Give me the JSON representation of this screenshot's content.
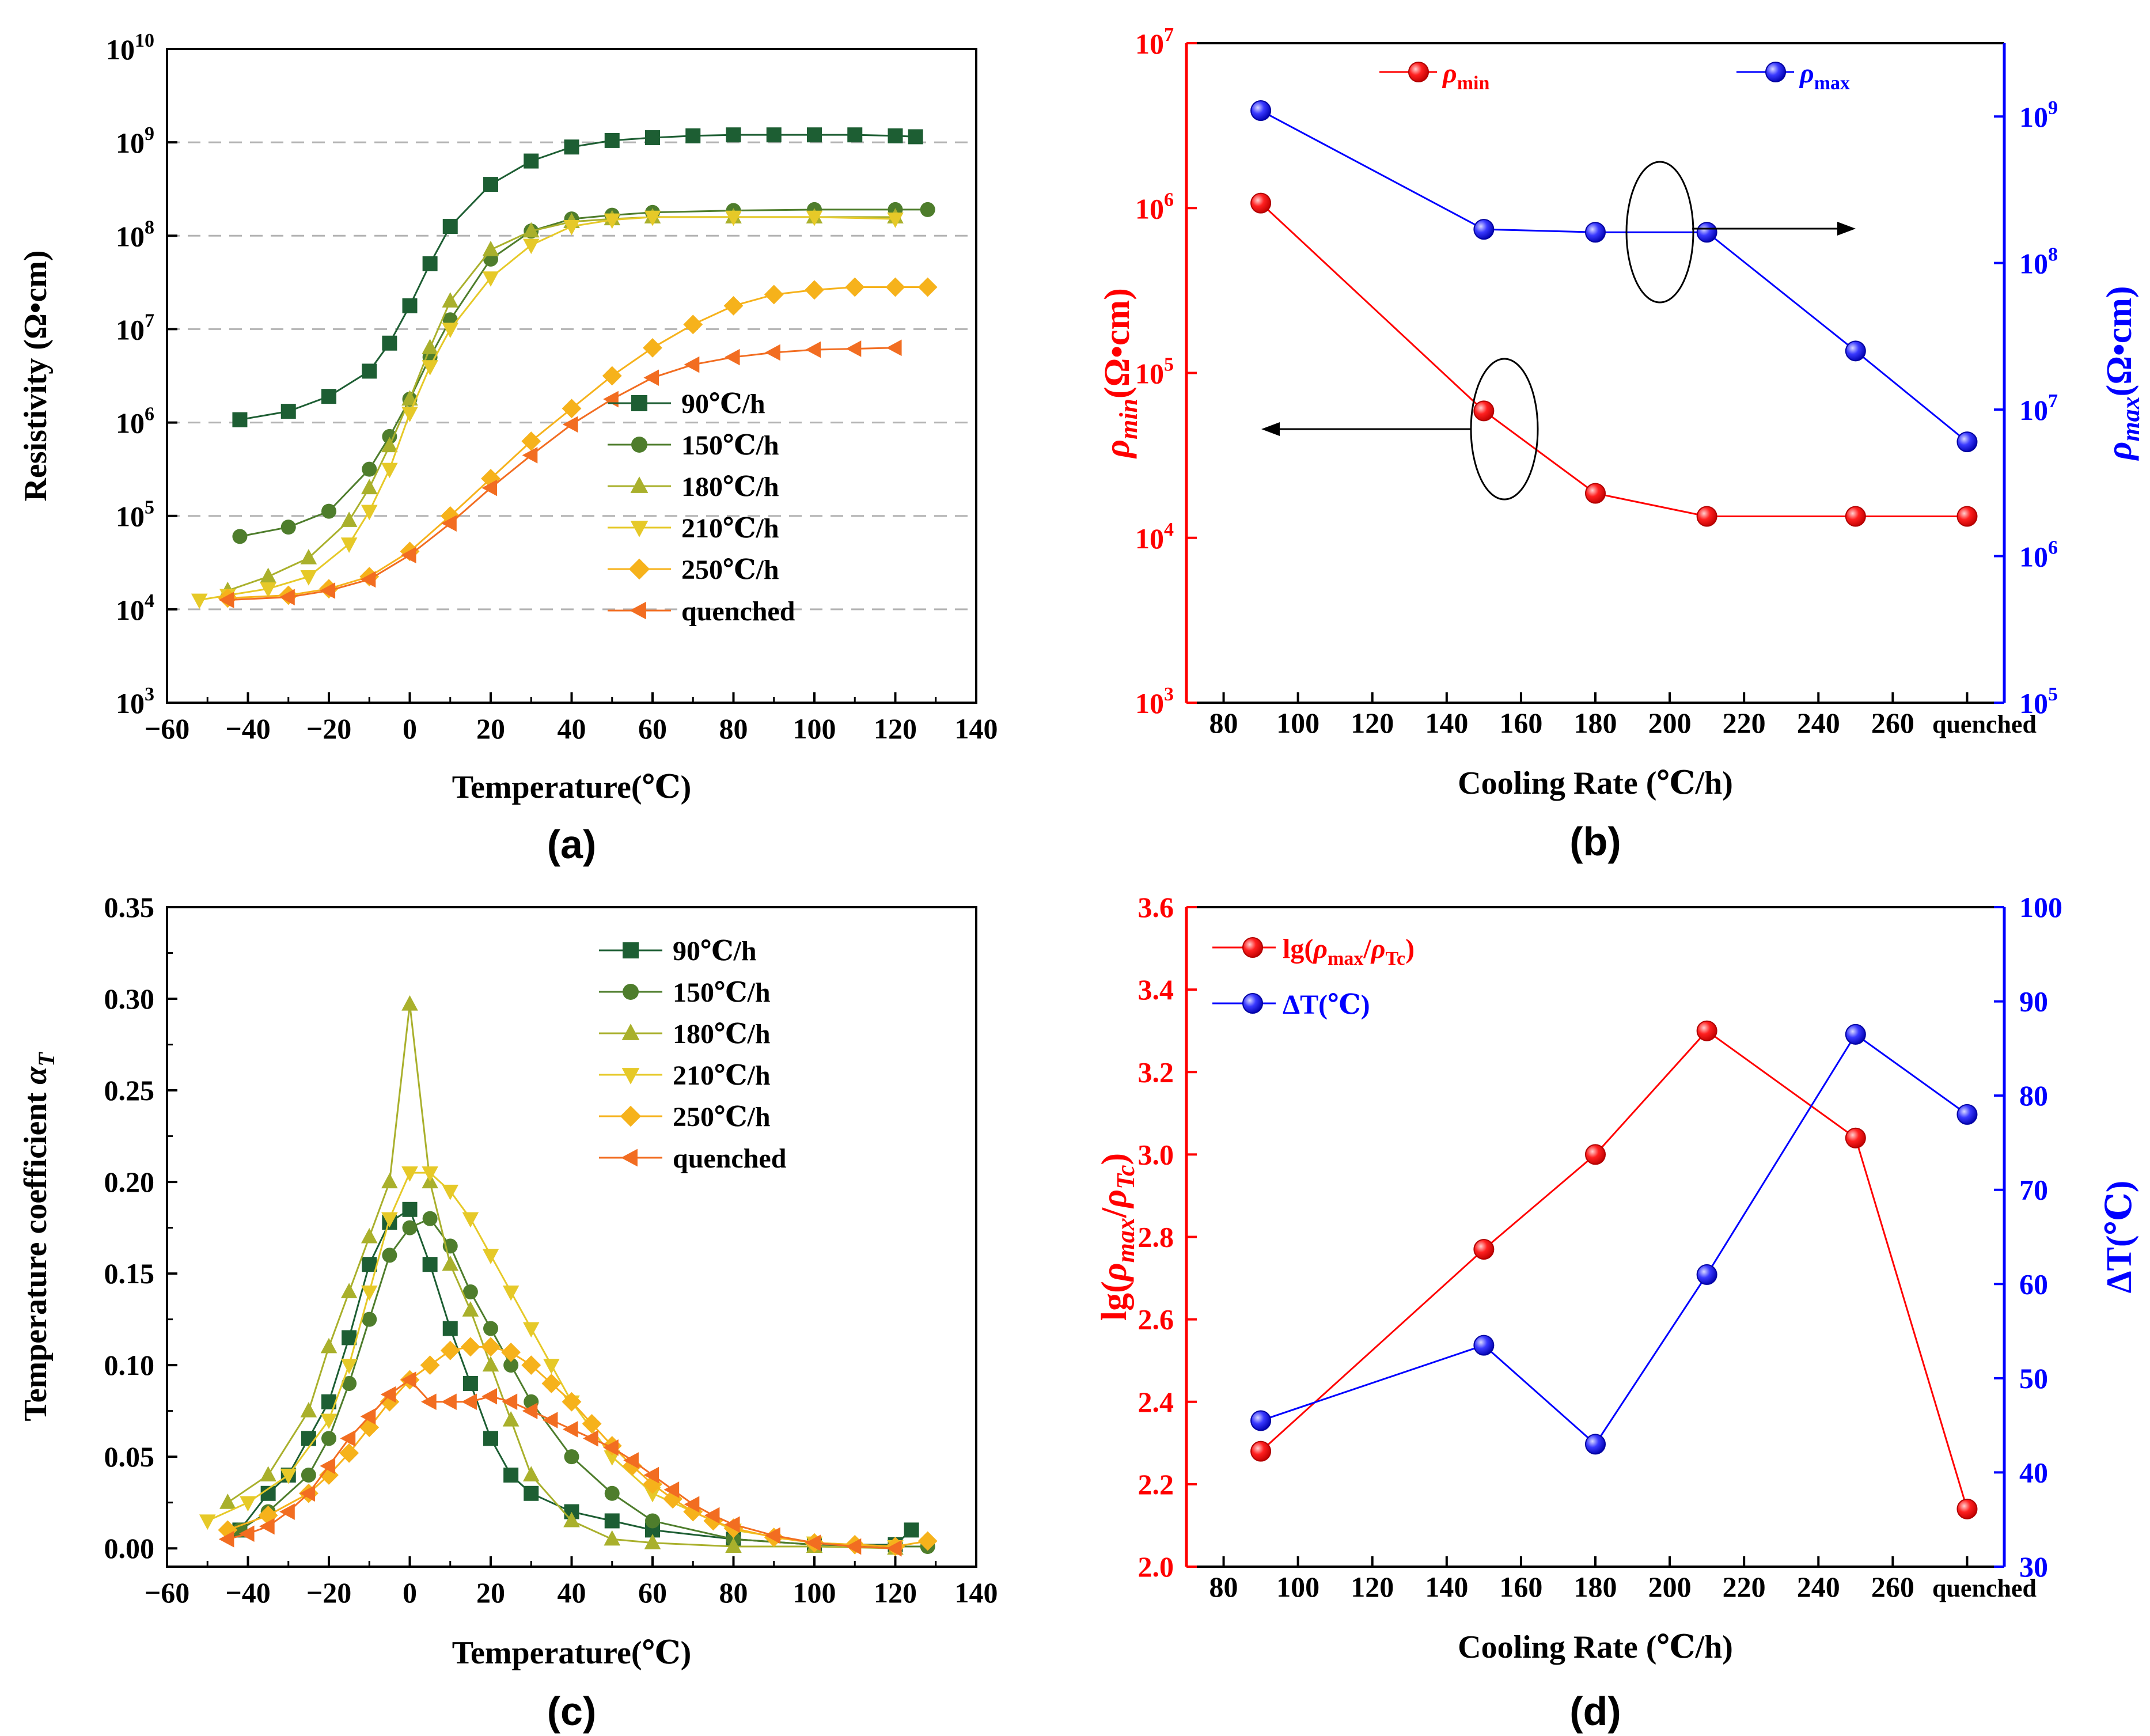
{
  "chart_data": [
    {
      "id": "a",
      "type": "scatter-line",
      "panel_label": "(a)",
      "xlabel": "Temperature(℃)",
      "ylabel": "Resistivity (Ω•cm)",
      "xlim": [
        -60,
        140
      ],
      "xticks": [
        "−60",
        "−40",
        "−20",
        "0",
        "20",
        "40",
        "60",
        "80",
        "100",
        "120",
        "140"
      ],
      "yscale": "log",
      "ylim_exp": [
        3,
        10
      ],
      "yticks": [
        {
          "base": "10",
          "exp": "3"
        },
        {
          "base": "10",
          "exp": "4"
        },
        {
          "base": "10",
          "exp": "5"
        },
        {
          "base": "10",
          "exp": "6"
        },
        {
          "base": "10",
          "exp": "7"
        },
        {
          "base": "10",
          "exp": "8"
        },
        {
          "base": "10",
          "exp": "9"
        },
        {
          "base": "10",
          "exp": "10"
        }
      ],
      "grid_y_exp": [
        4,
        5,
        6,
        7,
        8,
        9
      ],
      "legend": "bottom-right",
      "series": [
        {
          "name": "90℃/h",
          "color": "#1d5e33",
          "marker": "square",
          "x": [
            -42,
            -30,
            -20,
            -10,
            -5,
            0,
            5,
            10,
            20,
            30,
            40,
            50,
            60,
            70,
            80,
            90,
            100,
            110,
            120,
            125
          ],
          "y_exp": [
            6.03,
            6.12,
            6.28,
            6.55,
            6.85,
            7.25,
            7.7,
            8.1,
            8.55,
            8.8,
            8.95,
            9.02,
            9.05,
            9.07,
            9.08,
            9.08,
            9.08,
            9.08,
            9.07,
            9.06
          ]
        },
        {
          "name": "150℃/h",
          "color": "#4e7d2c",
          "marker": "circle",
          "x": [
            -42,
            -30,
            -20,
            -10,
            -5,
            0,
            5,
            10,
            20,
            30,
            40,
            50,
            60,
            80,
            100,
            120,
            128
          ],
          "y_exp": [
            4.78,
            4.88,
            5.05,
            5.5,
            5.85,
            6.25,
            6.7,
            7.1,
            7.75,
            8.05,
            8.18,
            8.22,
            8.25,
            8.27,
            8.28,
            8.28,
            8.28
          ]
        },
        {
          "name": "180℃/h",
          "color": "#a9b02c",
          "marker": "triangle-up",
          "x": [
            -45,
            -35,
            -25,
            -15,
            -10,
            -5,
            0,
            5,
            10,
            20,
            30,
            40,
            50,
            60,
            80,
            100,
            120
          ],
          "y_exp": [
            4.2,
            4.35,
            4.55,
            4.95,
            5.3,
            5.75,
            6.25,
            6.8,
            7.3,
            7.85,
            8.05,
            8.15,
            8.18,
            8.2,
            8.2,
            8.2,
            8.2
          ]
        },
        {
          "name": "210℃/h",
          "color": "#e6c928",
          "marker": "triangle-down",
          "x": [
            -52,
            -45,
            -35,
            -25,
            -15,
            -10,
            -5,
            0,
            5,
            10,
            20,
            30,
            40,
            50,
            60,
            80,
            100,
            120
          ],
          "y_exp": [
            4.1,
            4.15,
            4.22,
            4.35,
            4.7,
            5.05,
            5.5,
            6.1,
            6.6,
            7.0,
            7.55,
            7.9,
            8.1,
            8.17,
            8.2,
            8.2,
            8.2,
            8.18
          ]
        },
        {
          "name": "250℃/h",
          "color": "#f6b21b",
          "marker": "diamond",
          "x": [
            -45,
            -30,
            -20,
            -10,
            0,
            10,
            20,
            30,
            40,
            50,
            60,
            70,
            80,
            90,
            100,
            110,
            120,
            128
          ],
          "y_exp": [
            4.12,
            4.15,
            4.22,
            4.35,
            4.62,
            5.0,
            5.4,
            5.8,
            6.15,
            6.5,
            6.8,
            7.05,
            7.25,
            7.37,
            7.42,
            7.45,
            7.45,
            7.45
          ]
        },
        {
          "name": "quenched",
          "color": "#f26d21",
          "marker": "triangle-left",
          "x": [
            -45,
            -30,
            -20,
            -10,
            0,
            10,
            20,
            30,
            40,
            50,
            60,
            70,
            80,
            90,
            100,
            110,
            120
          ],
          "y_exp": [
            4.1,
            4.13,
            4.2,
            4.32,
            4.58,
            4.92,
            5.3,
            5.65,
            5.98,
            6.25,
            6.48,
            6.62,
            6.7,
            6.75,
            6.78,
            6.79,
            6.8
          ]
        }
      ]
    },
    {
      "id": "b",
      "type": "scatter-line",
      "panel_label": "(b)",
      "xlabel": "Cooling Rate (℃/h)",
      "xlim": [
        70,
        290
      ],
      "xticks": [
        "80",
        "100",
        "120",
        "140",
        "160",
        "180",
        "200",
        "220",
        "240",
        "260",
        "quenched"
      ],
      "xtick_values": [
        80,
        100,
        120,
        140,
        160,
        180,
        200,
        220,
        240,
        260,
        280
      ],
      "ylabel_left": {
        "sym": "ρ",
        "sub": "min",
        "unit": "(Ω•cm)"
      },
      "ylabel_right": {
        "sym": "ρ",
        "sub": "max",
        "unit": "(Ω•cm)"
      },
      "left_yscale": "log",
      "left_ylim_exp": [
        3,
        7
      ],
      "left_yticks": [
        {
          "base": "10",
          "exp": "3"
        },
        {
          "base": "10",
          "exp": "4"
        },
        {
          "base": "10",
          "exp": "5"
        },
        {
          "base": "10",
          "exp": "6"
        },
        {
          "base": "10",
          "exp": "7"
        }
      ],
      "right_yscale": "log",
      "right_ylim_exp": [
        5,
        9.5
      ],
      "right_yticks": [
        {
          "base": "10",
          "exp": "5"
        },
        {
          "base": "10",
          "exp": "6"
        },
        {
          "base": "10",
          "exp": "7"
        },
        {
          "base": "10",
          "exp": "8"
        },
        {
          "base": "10",
          "exp": "9"
        }
      ],
      "legend": "top",
      "series": [
        {
          "name": "ρmin",
          "legend_sym": "ρ",
          "legend_sub": "min",
          "axis": "left",
          "color": "#ff0000",
          "x": [
            90,
            150,
            180,
            210,
            250,
            280
          ],
          "y_exp": [
            6.03,
            4.77,
            4.27,
            4.13,
            4.13,
            4.13
          ]
        },
        {
          "name": "ρmax",
          "legend_sym": "ρ",
          "legend_sub": "max",
          "axis": "right",
          "color": "#0000ff",
          "x": [
            90,
            150,
            180,
            210,
            250,
            280
          ],
          "y_exp": [
            9.04,
            8.23,
            8.21,
            8.21,
            7.4,
            6.78
          ]
        }
      ]
    },
    {
      "id": "c",
      "type": "scatter-line",
      "panel_label": "(c)",
      "xlabel": "Temperature(℃)",
      "ylabel": "Temperature coefficient ",
      "ylabel_sym": "α",
      "ylabel_sub": "T",
      "xlim": [
        -60,
        140
      ],
      "xticks": [
        "−60",
        "−40",
        "−20",
        "0",
        "20",
        "40",
        "60",
        "80",
        "100",
        "120",
        "140"
      ],
      "ylim": [
        -0.01,
        0.35
      ],
      "yticks": [
        "0.00",
        "0.05",
        "0.10",
        "0.15",
        "0.20",
        "0.25",
        "0.30",
        "0.35"
      ],
      "legend": "top-right",
      "series": [
        {
          "name": "90℃/h",
          "color": "#1d5e33",
          "marker": "square",
          "x": [
            -42,
            -35,
            -30,
            -25,
            -20,
            -15,
            -10,
            -5,
            0,
            5,
            10,
            15,
            20,
            25,
            30,
            40,
            50,
            60,
            80,
            100,
            120,
            124
          ],
          "y": [
            0.01,
            0.03,
            0.04,
            0.06,
            0.08,
            0.115,
            0.155,
            0.178,
            0.185,
            0.155,
            0.12,
            0.09,
            0.06,
            0.04,
            0.03,
            0.02,
            0.015,
            0.01,
            0.005,
            0.002,
            0.002,
            0.01
          ]
        },
        {
          "name": "150℃/h",
          "color": "#4e7d2c",
          "marker": "circle",
          "x": [
            -42,
            -35,
            -25,
            -20,
            -15,
            -10,
            -5,
            0,
            5,
            10,
            15,
            20,
            25,
            30,
            40,
            50,
            60,
            80,
            100,
            120,
            128
          ],
          "y": [
            0.01,
            0.02,
            0.04,
            0.06,
            0.09,
            0.125,
            0.16,
            0.175,
            0.18,
            0.165,
            0.14,
            0.12,
            0.1,
            0.08,
            0.05,
            0.03,
            0.015,
            0.005,
            0.002,
            0.001,
            0.001
          ]
        },
        {
          "name": "180℃/h",
          "color": "#a9b02c",
          "marker": "triangle-up",
          "x": [
            -45,
            -35,
            -25,
            -20,
            -15,
            -10,
            -5,
            0,
            5,
            10,
            15,
            20,
            25,
            30,
            40,
            50,
            60,
            80,
            100,
            120
          ],
          "y": [
            0.025,
            0.04,
            0.075,
            0.11,
            0.14,
            0.17,
            0.2,
            0.297,
            0.2,
            0.155,
            0.13,
            0.1,
            0.07,
            0.04,
            0.015,
            0.005,
            0.003,
            0.001,
            0.001,
            0.0
          ]
        },
        {
          "name": "210℃/h",
          "color": "#e6c928",
          "marker": "triangle-down",
          "x": [
            -50,
            -40,
            -30,
            -20,
            -15,
            -10,
            -5,
            0,
            5,
            10,
            15,
            20,
            25,
            30,
            35,
            40,
            50,
            60,
            80,
            100,
            120
          ],
          "y": [
            0.015,
            0.025,
            0.04,
            0.07,
            0.1,
            0.14,
            0.18,
            0.205,
            0.205,
            0.195,
            0.18,
            0.16,
            0.14,
            0.12,
            0.1,
            0.08,
            0.05,
            0.03,
            0.01,
            0.003,
            0.001
          ]
        },
        {
          "name": "250℃/h",
          "color": "#f6b21b",
          "marker": "diamond",
          "x": [
            -45,
            -35,
            -25,
            -20,
            -15,
            -10,
            -5,
            0,
            5,
            10,
            15,
            20,
            25,
            30,
            35,
            40,
            45,
            50,
            55,
            60,
            65,
            70,
            75,
            80,
            90,
            100,
            110,
            120,
            128
          ],
          "y": [
            0.01,
            0.018,
            0.03,
            0.04,
            0.052,
            0.066,
            0.08,
            0.092,
            0.1,
            0.108,
            0.11,
            0.11,
            0.107,
            0.1,
            0.09,
            0.08,
            0.068,
            0.056,
            0.045,
            0.035,
            0.027,
            0.02,
            0.015,
            0.011,
            0.006,
            0.003,
            0.002,
            0.001,
            0.004
          ]
        },
        {
          "name": "quenched",
          "color": "#f26d21",
          "marker": "triangle-left",
          "x": [
            -45,
            -40,
            -35,
            -30,
            -25,
            -20,
            -15,
            -10,
            -5,
            0,
            5,
            10,
            15,
            20,
            25,
            30,
            35,
            40,
            45,
            50,
            55,
            60,
            65,
            70,
            75,
            80,
            90,
            100,
            110,
            120
          ],
          "y": [
            0.005,
            0.008,
            0.012,
            0.02,
            0.03,
            0.045,
            0.06,
            0.072,
            0.084,
            0.092,
            0.08,
            0.08,
            0.08,
            0.083,
            0.08,
            0.075,
            0.07,
            0.065,
            0.06,
            0.055,
            0.048,
            0.04,
            0.032,
            0.024,
            0.018,
            0.013,
            0.007,
            0.003,
            0.001,
            0.0
          ]
        }
      ]
    },
    {
      "id": "d",
      "type": "scatter-line",
      "panel_label": "(d)",
      "xlabel": "Cooling Rate (℃/h)",
      "xlim": [
        70,
        290
      ],
      "xticks": [
        "80",
        "100",
        "120",
        "140",
        "160",
        "180",
        "200",
        "220",
        "240",
        "260",
        "quenched"
      ],
      "xtick_values": [
        80,
        100,
        120,
        140,
        160,
        180,
        200,
        220,
        240,
        260,
        280
      ],
      "ylabel_left": {
        "pre": "lg(",
        "sym1": "ρ",
        "sub1": "max",
        "slash": "/",
        "sym2": "ρ",
        "sub2": "Tc",
        "post": ")"
      },
      "ylabel_right": "ΔT(℃)",
      "left_ylim": [
        2.0,
        3.6
      ],
      "left_yticks": [
        "2.0",
        "2.2",
        "2.4",
        "2.6",
        "2.8",
        "3.0",
        "3.2",
        "3.4",
        "3.6"
      ],
      "right_ylim": [
        30,
        100
      ],
      "right_yticks": [
        "30",
        "40",
        "50",
        "60",
        "70",
        "80",
        "90",
        "100"
      ],
      "legend": "top-left",
      "series": [
        {
          "name": "lg(ρmax/ρTc)",
          "legend_pre": "lg(",
          "legend_sym1": "ρ",
          "legend_sub1": "max",
          "legend_slash": "/",
          "legend_sym2": "ρ",
          "legend_sub2": "Tc",
          "legend_post": ")",
          "axis": "left",
          "color": "#ff0000",
          "x": [
            90,
            150,
            180,
            210,
            250,
            280
          ],
          "y": [
            2.28,
            2.77,
            3.0,
            3.3,
            3.04,
            2.14
          ]
        },
        {
          "name": "ΔT(℃)",
          "axis": "right",
          "color": "#0000ff",
          "x": [
            90,
            150,
            180,
            210,
            250,
            280
          ],
          "y": [
            45.5,
            53.5,
            43,
            61,
            86.5,
            78
          ]
        }
      ]
    }
  ]
}
